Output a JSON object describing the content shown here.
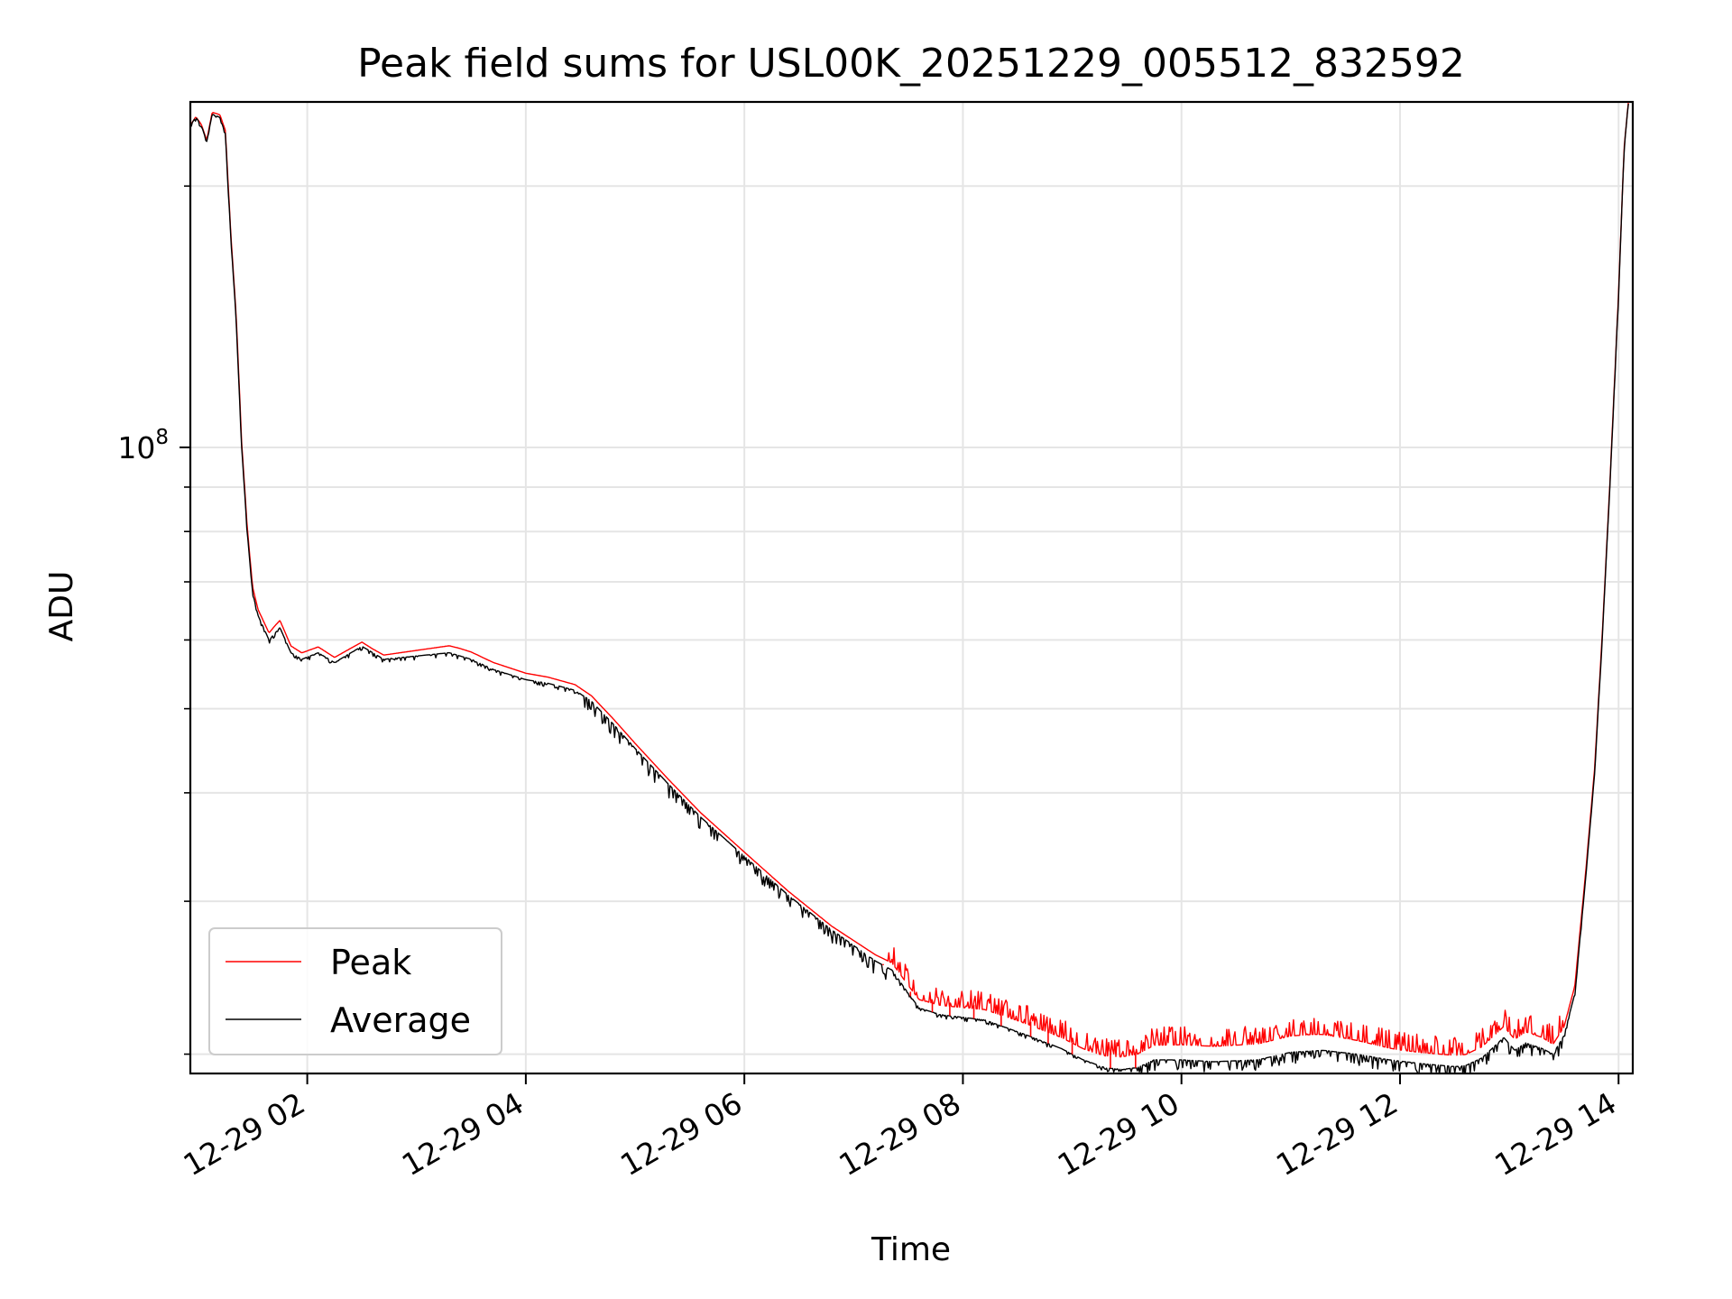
{
  "chart_data": {
    "type": "line",
    "title": "Peak field sums for USL00K_20251229_005512_832592",
    "xlabel": "Time",
    "ylabel": "ADU",
    "yscale": "log",
    "y_major_tick": {
      "value": 100000000,
      "label_base": "10",
      "label_exp": "8"
    },
    "ylim": [
      19000000,
      250000000
    ],
    "xlim_hours": [
      0.93,
      14.13
    ],
    "x_ticks": [
      {
        "hour": 2,
        "label": "12-29 02"
      },
      {
        "hour": 4,
        "label": "12-29 04"
      },
      {
        "hour": 6,
        "label": "12-29 06"
      },
      {
        "hour": 8,
        "label": "12-29 08"
      },
      {
        "hour": 10,
        "label": "12-29 10"
      },
      {
        "hour": 12,
        "label": "12-29 12"
      },
      {
        "hour": 14,
        "label": "12-29 14"
      }
    ],
    "y_minor_ticks": [
      20000000,
      30000000,
      40000000,
      50000000,
      60000000,
      70000000,
      80000000,
      90000000,
      200000000
    ],
    "grid": true,
    "legend_position": "lower-left",
    "series": [
      {
        "name": "Peak",
        "color": "#ff0000"
      },
      {
        "name": "Average",
        "color": "#000000"
      }
    ],
    "avg_curve": [
      [
        0.93,
        235000000
      ],
      [
        0.98,
        240000000
      ],
      [
        1.03,
        235000000
      ],
      [
        1.08,
        225000000
      ],
      [
        1.13,
        242000000
      ],
      [
        1.2,
        240000000
      ],
      [
        1.25,
        230000000
      ],
      [
        1.3,
        175000000
      ],
      [
        1.35,
        140000000
      ],
      [
        1.4,
        100000000
      ],
      [
        1.45,
        80000000
      ],
      [
        1.5,
        68000000
      ],
      [
        1.55,
        64000000
      ],
      [
        1.65,
        60000000
      ],
      [
        1.75,
        62000000
      ],
      [
        1.85,
        58000000
      ],
      [
        1.95,
        57000000
      ],
      [
        2.1,
        58000000
      ],
      [
        2.25,
        56500000
      ],
      [
        2.4,
        58000000
      ],
      [
        2.5,
        59000000
      ],
      [
        2.6,
        58000000
      ],
      [
        2.7,
        57000000
      ],
      [
        3.0,
        57500000
      ],
      [
        3.3,
        58000000
      ],
      [
        3.5,
        57000000
      ],
      [
        3.7,
        55500000
      ],
      [
        4.0,
        54000000
      ],
      [
        4.2,
        53500000
      ],
      [
        4.45,
        52500000
      ],
      [
        4.6,
        51000000
      ],
      [
        4.8,
        48000000
      ],
      [
        5.0,
        45000000
      ],
      [
        5.3,
        41000000
      ],
      [
        5.6,
        37500000
      ],
      [
        6.0,
        33800000
      ],
      [
        6.4,
        30500000
      ],
      [
        6.8,
        27800000
      ],
      [
        7.2,
        25600000
      ],
      [
        7.35,
        25000000
      ],
      [
        7.5,
        23500000
      ],
      [
        7.6,
        22600000
      ],
      [
        7.8,
        22200000
      ],
      [
        8.2,
        21900000
      ],
      [
        8.6,
        21000000
      ],
      [
        8.9,
        20300000
      ],
      [
        9.1,
        19700000
      ],
      [
        9.3,
        19300000
      ],
      [
        9.45,
        19200000
      ],
      [
        9.6,
        19300000
      ],
      [
        9.75,
        19700000
      ],
      [
        10.0,
        19700000
      ],
      [
        10.3,
        19600000
      ],
      [
        10.7,
        19700000
      ],
      [
        11.0,
        20100000
      ],
      [
        11.3,
        20200000
      ],
      [
        11.6,
        20000000
      ],
      [
        11.9,
        19700000
      ],
      [
        12.2,
        19500000
      ],
      [
        12.5,
        19350000
      ],
      [
        12.6,
        19400000
      ],
      [
        12.75,
        19800000
      ],
      [
        12.95,
        20900000
      ],
      [
        13.05,
        20200000
      ],
      [
        13.15,
        20600000
      ],
      [
        13.3,
        20300000
      ],
      [
        13.4,
        20000000
      ],
      [
        13.5,
        21000000
      ],
      [
        13.6,
        23500000
      ],
      [
        13.7,
        32000000
      ],
      [
        13.78,
        42000000
      ],
      [
        13.85,
        60000000
      ],
      [
        13.92,
        90000000
      ],
      [
        14.0,
        150000000
      ],
      [
        14.05,
        220000000
      ],
      [
        14.09,
        250000000
      ]
    ],
    "peak_offset_curve": [
      [
        0.93,
        1.0
      ],
      [
        1.7,
        1.02
      ],
      [
        2.6,
        1.01
      ],
      [
        3.4,
        1.02
      ],
      [
        4.5,
        1.015
      ],
      [
        5.5,
        1.012
      ],
      [
        6.8,
        1.01
      ],
      [
        7.4,
        1.02
      ],
      [
        7.8,
        1.025
      ],
      [
        8.5,
        1.03
      ],
      [
        9.2,
        1.03
      ],
      [
        9.8,
        1.04
      ],
      [
        11.2,
        1.045
      ],
      [
        12.0,
        1.03
      ],
      [
        12.7,
        1.03
      ],
      [
        13.3,
        1.03
      ],
      [
        13.6,
        1.02
      ],
      [
        14.13,
        1.0
      ]
    ],
    "peak_spikes": [
      [
        7.27,
        25400000
      ],
      [
        7.52,
        23600000
      ],
      [
        7.72,
        23000000
      ],
      [
        7.88,
        22900000
      ],
      [
        8.1,
        22800000
      ],
      [
        8.35,
        22500000
      ],
      [
        8.62,
        21800000
      ],
      [
        8.78,
        21300000
      ],
      [
        9.0,
        20600000
      ],
      [
        9.35,
        20200000
      ],
      [
        9.58,
        20100000
      ]
    ]
  }
}
